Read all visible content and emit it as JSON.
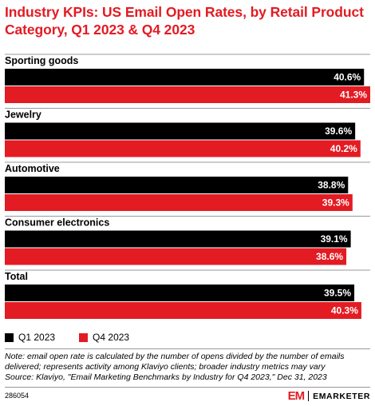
{
  "title": "Industry KPIs: US Email Open Rates, by Retail Product Category, Q1 2023 & Q4 2023",
  "chart_data": {
    "type": "bar",
    "orientation": "horizontal",
    "categories": [
      "Sporting goods",
      "Jewelry",
      "Automotive",
      "Consumer electronics",
      "Total"
    ],
    "series": [
      {
        "name": "Q1 2023",
        "color": "#000000",
        "values": [
          40.6,
          39.6,
          38.8,
          39.1,
          39.5
        ],
        "labels": [
          "40.6%",
          "39.6%",
          "38.8%",
          "39.1%",
          "39.5%"
        ]
      },
      {
        "name": "Q4 2023",
        "color": "#e31b23",
        "values": [
          41.3,
          40.2,
          39.3,
          38.6,
          40.3
        ],
        "labels": [
          "41.3%",
          "40.2%",
          "39.3%",
          "38.6%",
          "40.3%"
        ]
      }
    ],
    "xlim": [
      0,
      41.3
    ],
    "grid": false,
    "legend": "bottom-left",
    "title": "Industry KPIs: US Email Open Rates, by Retail Product Category, Q1 2023 & Q4 2023",
    "xlabel": "",
    "ylabel": ""
  },
  "notes": {
    "line1": "Note: email open rate is calculated by the number of opens divided by the number of emails",
    "line2": "delivered; represents activity among Klaviyo clients; broader industry metrics may vary",
    "line3": "Source: Klaviyo, \"Email Marketing Benchmarks by Industry for Q4 2023,\" Dec 31, 2023"
  },
  "footer": {
    "chart_id": "286054",
    "brand_mark": "EM",
    "brand_name": "EMARKETER"
  }
}
